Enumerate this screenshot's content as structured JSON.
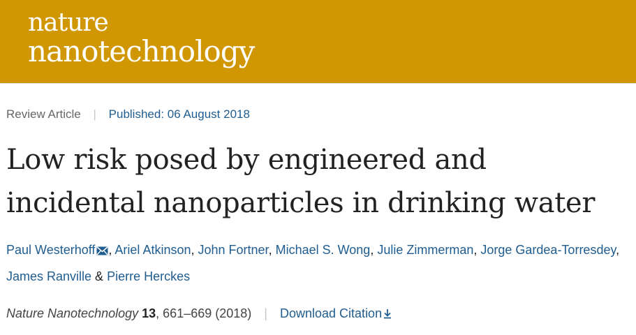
{
  "header": {
    "logo_line1": "nature",
    "logo_line2": "nanotechnology",
    "brand_color": "#d09702"
  },
  "article_meta": {
    "type": "Review Article",
    "separator": "|",
    "published": "Published: 06 August 2018"
  },
  "title_line1": "Low risk posed by engineered and",
  "title_line2": "incidental nanoparticles in drinking water",
  "authors": [
    "Paul Westerhoff",
    "Ariel Atkinson",
    "John Fortner",
    "Michael S. Wong",
    "Julie Zimmerman",
    "Jorge Gardea-Torresdey",
    "James Ranville",
    "Pierre Herckes"
  ],
  "authors_joiners": {
    "comma": ", ",
    "amp": " & "
  },
  "citation": {
    "journal": "Nature Nanotechnology",
    "volume": "13",
    "pages_year": ", 661–669 (2018)",
    "separator": "|",
    "download_label": "Download Citation"
  },
  "icons": {
    "mail": "mail-icon",
    "download": "download-icon"
  },
  "link_color": "#1f5c8f"
}
